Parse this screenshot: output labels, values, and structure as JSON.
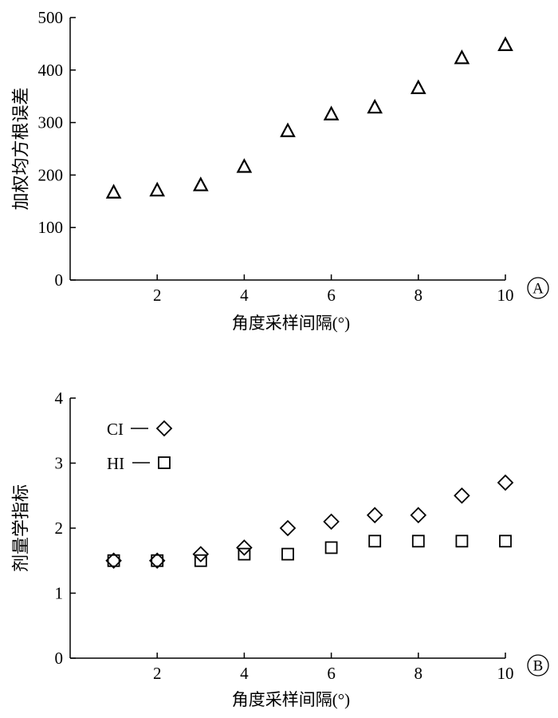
{
  "chart_data": [
    {
      "type": "scatter",
      "panel_label": "A",
      "xlabel": "角度采样间隔(°)",
      "ylabel": "加权均方根误差",
      "xlim": [
        0,
        10
      ],
      "ylim": [
        0,
        500
      ],
      "xticks": [
        "2",
        "4",
        "6",
        "8",
        "10"
      ],
      "yticks": [
        "0",
        "100",
        "200",
        "300",
        "400",
        "500"
      ],
      "grid": false,
      "series": [
        {
          "marker": "triangle",
          "x": [
            1,
            2,
            3,
            4,
            5,
            6,
            7,
            8,
            9,
            10
          ],
          "y": [
            166,
            170,
            180,
            215,
            283,
            315,
            328,
            365,
            422,
            447
          ]
        }
      ]
    },
    {
      "type": "scatter",
      "panel_label": "B",
      "xlabel": "角度采样间隔(°)",
      "ylabel": "剂量学指标",
      "xlim": [
        0,
        10
      ],
      "ylim": [
        0,
        4
      ],
      "xticks": [
        "2",
        "4",
        "6",
        "8",
        "10"
      ],
      "yticks": [
        "0",
        "1",
        "2",
        "3",
        "4"
      ],
      "grid": false,
      "legend_position": "top-left",
      "series": [
        {
          "name": "CI",
          "marker": "diamond",
          "x": [
            1,
            2,
            3,
            4,
            5,
            6,
            7,
            8,
            9,
            10
          ],
          "y": [
            1.5,
            1.5,
            1.6,
            1.7,
            2.0,
            2.1,
            2.2,
            2.2,
            2.5,
            2.7
          ]
        },
        {
          "name": "HI",
          "marker": "square",
          "x": [
            1,
            2,
            3,
            4,
            5,
            6,
            7,
            8,
            9,
            10
          ],
          "y": [
            1.5,
            1.5,
            1.5,
            1.6,
            1.6,
            1.7,
            1.8,
            1.8,
            1.8,
            1.8
          ]
        }
      ]
    }
  ]
}
